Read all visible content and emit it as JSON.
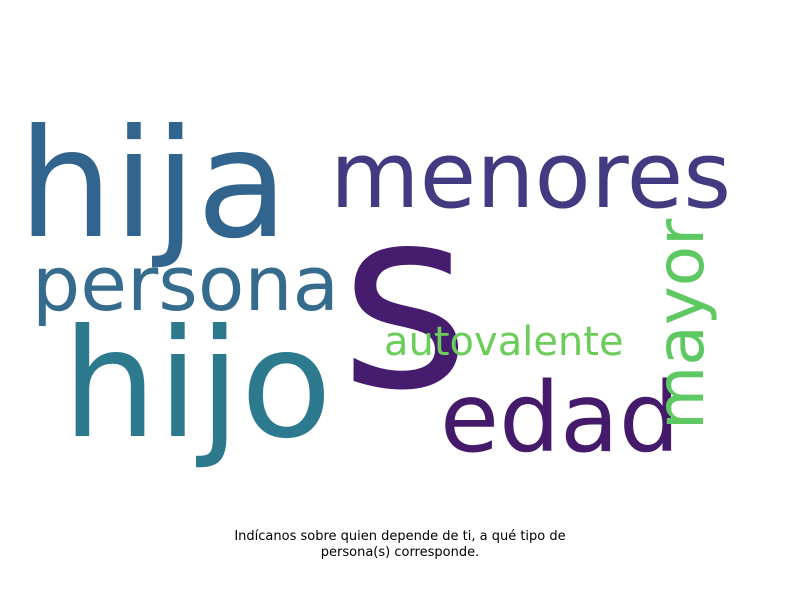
{
  "words": [
    {
      "id": "hija",
      "text": "hija",
      "color": "#31658e"
    },
    {
      "id": "menores",
      "text": "menores",
      "color": "#423b82"
    },
    {
      "id": "persona",
      "text": "persona",
      "color": "#356c8e"
    },
    {
      "id": "s",
      "text": "s",
      "color": "#461d6e"
    },
    {
      "id": "hijo",
      "text": "hijo",
      "color": "#2d7a8e"
    },
    {
      "id": "autovalente",
      "text": "autovalente",
      "color": "#6ccd5a"
    },
    {
      "id": "edad",
      "text": "edad",
      "color": "#451a6b"
    },
    {
      "id": "mayor",
      "text": "mayor",
      "color": "#5ec962"
    }
  ],
  "caption_line1": "Indícanos sobre quien depende de ti, a qué tipo de",
  "caption_line2": "persona(s) corresponde."
}
